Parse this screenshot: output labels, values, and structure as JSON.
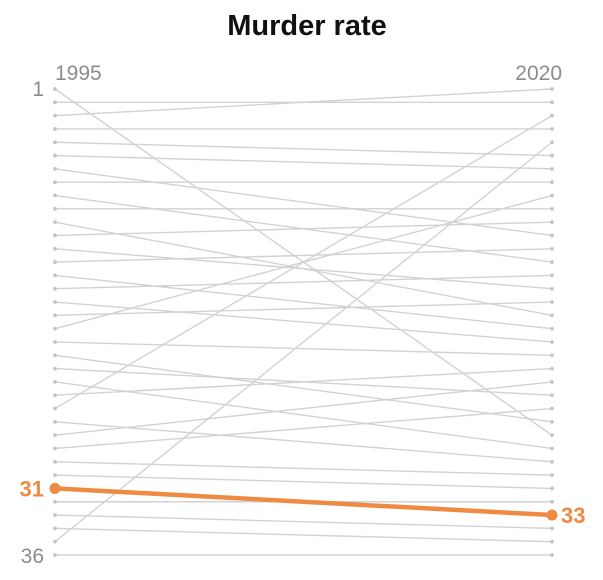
{
  "chart_data": {
    "type": "line",
    "chart_style": "slope",
    "title": "Murder rate",
    "x": [
      "1995",
      "2020"
    ],
    "y_axis": {
      "ticks": [
        "1",
        "36"
      ],
      "range": [
        1,
        36
      ],
      "inverted": true
    },
    "series": [
      {
        "values": [
          1,
          27
        ]
      },
      {
        "values": [
          2,
          2
        ]
      },
      {
        "values": [
          3,
          1
        ]
      },
      {
        "values": [
          4,
          4
        ]
      },
      {
        "values": [
          5,
          6
        ]
      },
      {
        "values": [
          6,
          7
        ]
      },
      {
        "values": [
          7,
          12
        ]
      },
      {
        "values": [
          8,
          8
        ]
      },
      {
        "values": [
          9,
          14
        ]
      },
      {
        "values": [
          10,
          10
        ]
      },
      {
        "values": [
          11,
          18
        ]
      },
      {
        "values": [
          12,
          11
        ]
      },
      {
        "values": [
          13,
          16
        ]
      },
      {
        "values": [
          14,
          13
        ]
      },
      {
        "values": [
          15,
          19
        ]
      },
      {
        "values": [
          16,
          15
        ]
      },
      {
        "values": [
          17,
          20
        ]
      },
      {
        "values": [
          18,
          17
        ]
      },
      {
        "values": [
          19,
          9
        ]
      },
      {
        "values": [
          20,
          21
        ]
      },
      {
        "values": [
          21,
          26
        ]
      },
      {
        "values": [
          22,
          24
        ]
      },
      {
        "values": [
          23,
          28
        ]
      },
      {
        "values": [
          24,
          22
        ]
      },
      {
        "values": [
          25,
          3
        ]
      },
      {
        "values": [
          26,
          29
        ]
      },
      {
        "values": [
          27,
          23
        ]
      },
      {
        "values": [
          28,
          25
        ]
      },
      {
        "values": [
          29,
          30
        ]
      },
      {
        "values": [
          30,
          31
        ]
      },
      {
        "values": [
          31,
          33
        ]
      },
      {
        "values": [
          32,
          32
        ]
      },
      {
        "values": [
          33,
          34
        ]
      },
      {
        "values": [
          34,
          35
        ]
      },
      {
        "values": [
          35,
          5
        ]
      },
      {
        "values": [
          36,
          36
        ]
      }
    ],
    "highlight": {
      "values": [
        31,
        33
      ],
      "start_label": "31",
      "end_label": "33",
      "color": "#ef8a43"
    },
    "colors": {
      "background_line": "#d2d2d2",
      "dot": "#c4c4c4"
    }
  }
}
